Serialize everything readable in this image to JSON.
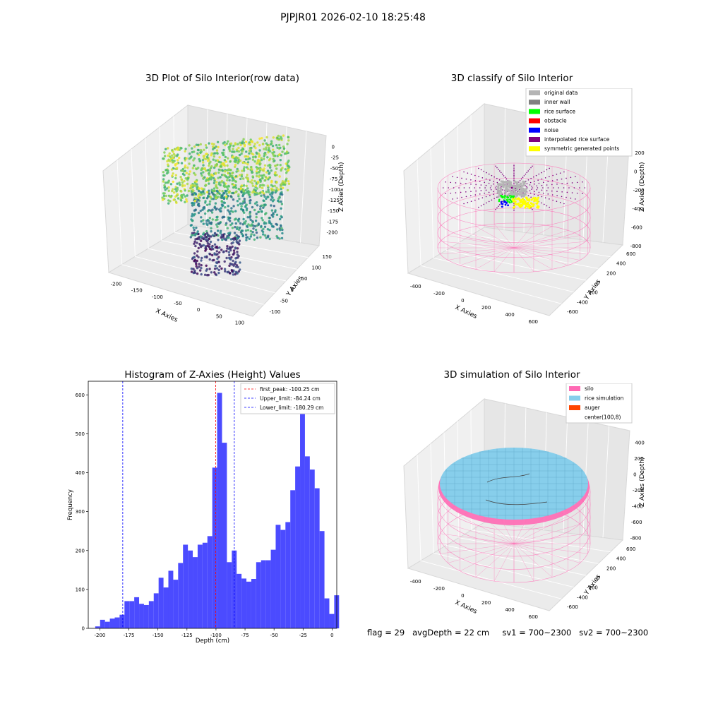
{
  "suptitle": "PJPJR01 2026-02-10 18:25:48",
  "stats_line": "flag = 29   avgDepth = 22 cm     sv1 = 700~2300   sv2 = 700~2300",
  "colors": {
    "silo": "#ff69b4",
    "rice_simulation": "#87ceeb",
    "auger": "#ff4500",
    "original_data": "#b4b4b4",
    "inner_wall": "#808080",
    "rice_surface": "#00ff00",
    "obstacle": "#ff0000",
    "noise": "#0000ff",
    "interpolated": "#800080",
    "symmetric": "#ffff00",
    "hist_bar": "#4b4bff"
  },
  "chart_data": [
    {
      "type": "scatter",
      "title": "3D Plot of Silo Interior(row data)",
      "projection": "3d",
      "xlabel": "X Axies",
      "ylabel": "Y Axies",
      "zlabel": "Z Axies (Depth)",
      "xticks": [
        "-200",
        "-150",
        "-100",
        "-50",
        "0",
        "50",
        "100"
      ],
      "yticks": [
        "-100",
        "-50",
        "0",
        "50",
        "100",
        "150"
      ],
      "zticks": [
        "0",
        "-25",
        "-50",
        "-75",
        "-100",
        "-125",
        "-150",
        "-175",
        "-200"
      ],
      "colormap": "viridis"
    },
    {
      "type": "scatter",
      "title": "3D classify of Silo Interior",
      "projection": "3d",
      "xlabel": "X Axies",
      "ylabel": "Y Axies",
      "zlabel": "Z Axies (Depth)",
      "xticks": [
        "-400",
        "-200",
        "0",
        "200",
        "400",
        "600"
      ],
      "yticks": [
        "-600",
        "-400",
        "-200",
        "0",
        "200",
        "400",
        "600"
      ],
      "zticks": [
        "200",
        "0",
        "-200",
        "-400",
        "-600",
        "-800"
      ],
      "legend": [
        {
          "label": "original data",
          "color": "#b4b4b4"
        },
        {
          "label": "inner wall",
          "color": "#808080"
        },
        {
          "label": "rice surface",
          "color": "#00ff00"
        },
        {
          "label": "obstacle",
          "color": "#ff0000"
        },
        {
          "label": "noise",
          "color": "#0000ff"
        },
        {
          "label": "interpolated rice surface",
          "color": "#800080"
        },
        {
          "label": "symmetric generated points",
          "color": "#ffff00"
        }
      ]
    },
    {
      "type": "bar",
      "title": "Histogram of Z-Axies (Height) Values",
      "xlabel": "Depth (cm)",
      "ylabel": "Frequency",
      "xlim": [
        -210,
        4
      ],
      "ylim": [
        0,
        635
      ],
      "xticks": [
        -200,
        -175,
        -150,
        -125,
        -100,
        -75,
        -50,
        -25,
        0
      ],
      "yticks": [
        0,
        100,
        200,
        300,
        400,
        500,
        600
      ],
      "bin_width": 4.2,
      "bin_start": -204,
      "values": [
        5,
        22,
        17,
        25,
        28,
        35,
        70,
        70,
        80,
        63,
        60,
        70,
        90,
        130,
        105,
        148,
        125,
        168,
        215,
        200,
        183,
        215,
        220,
        237,
        413,
        605,
        477,
        170,
        200,
        140,
        128,
        120,
        127,
        170,
        175,
        175,
        202,
        266,
        253,
        273,
        355,
        416,
        555,
        442,
        408,
        360,
        250,
        77,
        37,
        85
      ],
      "lines": [
        {
          "label": "first_peak: -100.25 cm",
          "x": -100.25,
          "color": "#ff0000"
        },
        {
          "label": "Upper_limit: -84.24 cm",
          "x": -84.24,
          "color": "#0000ff"
        },
        {
          "label": "Lower_limit: -180.29 cm",
          "x": -180.29,
          "color": "#0000ff"
        }
      ]
    },
    {
      "type": "area",
      "title": "3D simulation of Silo Interior",
      "projection": "3d",
      "xlabel": "X Axies",
      "ylabel": "Y Axies",
      "zlabel": "Z Axies (Depth)",
      "xticks": [
        "-400",
        "-200",
        "0",
        "200",
        "400",
        "600"
      ],
      "yticks": [
        "-600",
        "-400",
        "-200",
        "0",
        "200",
        "400",
        "600"
      ],
      "zticks": [
        "400",
        "200",
        "0",
        "-200",
        "-400",
        "-600",
        "-800"
      ],
      "legend": [
        {
          "label": "silo",
          "color": "#ff69b4"
        },
        {
          "label": "rice simulation",
          "color": "#87ceeb"
        },
        {
          "label": "auger",
          "color": "#ff4500"
        },
        {
          "label": "center(100,8)",
          "color": ""
        }
      ]
    }
  ]
}
